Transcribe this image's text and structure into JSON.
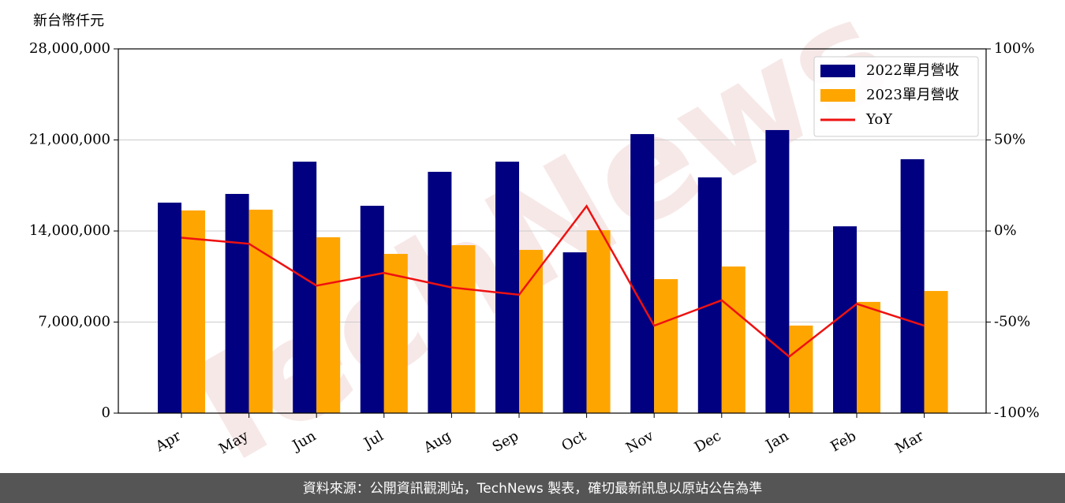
{
  "chart_data": {
    "type": "bar",
    "y_label": "新台幣仟元",
    "watermark": "TechNews",
    "source": "資料來源：公開資訊觀測站，TechNews 製表，確切最新訊息以原站公告為準",
    "categories": [
      "Apr",
      "May",
      "Jun",
      "Jul",
      "Aug",
      "Sep",
      "Oct",
      "Nov",
      "Dec",
      "Jan",
      "Feb",
      "Mar"
    ],
    "series": [
      {
        "name": "2022單月營收",
        "type": "bar",
        "color": "#000080",
        "values": [
          16180000,
          16850000,
          19330000,
          15940000,
          18550000,
          19330000,
          12360000,
          21450000,
          18120000,
          21760000,
          14360000,
          19520000
        ]
      },
      {
        "name": "2023單月營收",
        "type": "bar",
        "color": "#ffa500",
        "values": [
          15580000,
          15640000,
          13520000,
          12240000,
          12910000,
          12550000,
          14060000,
          10300000,
          11270000,
          6730000,
          8550000,
          9390000
        ]
      },
      {
        "name": "YoY",
        "type": "line",
        "axis": "y2",
        "color": "#ee1111",
        "values": [
          -3.7,
          -7,
          -30,
          -23,
          -31,
          -35,
          13.7,
          -52,
          -38,
          -69,
          -40,
          -52
        ]
      }
    ],
    "ylim": [
      0,
      28000000
    ],
    "yticks": [
      0,
      {
        "value": 7000000,
        "label": "7,000,000"
      },
      {
        "value": 14000000,
        "label": "14,000,000"
      },
      {
        "value": 21000000,
        "label": "21,000,000"
      },
      {
        "value": 28000000,
        "label": "28,000,000"
      }
    ],
    "y2lim": [
      -100,
      100
    ],
    "y2ticks": [
      {
        "value": -100,
        "label": "-100%"
      },
      {
        "value": -50,
        "label": "-50%"
      },
      {
        "value": 0,
        "label": "0%"
      },
      {
        "value": 50,
        "label": "50%"
      },
      {
        "value": 100,
        "label": "100%"
      }
    ],
    "grid": true,
    "legend": "upper-right"
  }
}
